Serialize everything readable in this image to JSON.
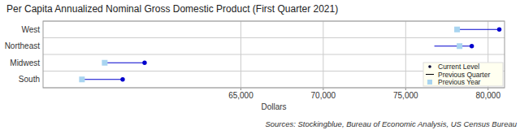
{
  "chart_data": {
    "type": "dot",
    "title": "Per Capita Annualized Nominal Gross Domestic Product (First Quarter 2021)",
    "x_label": "Dollars",
    "source": "Sources: Stockingblue, Bureau of Economic Analysis, US Census Bureau",
    "orientation": "horizontal",
    "categories": [
      "West",
      "Northeast",
      "Midwest",
      "South"
    ],
    "series": [
      {
        "name": "Current Level",
        "color": "#0000cd",
        "marker": "circle",
        "values": [
          80680,
          79010,
          59160,
          57830
        ]
      },
      {
        "name": "Previous Quarter",
        "color": "#0000cd",
        "line_style": "solid",
        "values": [
          78120,
          76740,
          56740,
          55360
        ]
      },
      {
        "name": "Previous Year",
        "color": "#a8d4f0",
        "marker": "square",
        "values": [
          78120,
          78270,
          56740,
          55360
        ]
      }
    ],
    "xlim": [
      53000,
      81000
    ],
    "xticks": [
      {
        "value": 65000,
        "label": "65,000"
      },
      {
        "value": 70000,
        "label": "70,000"
      },
      {
        "value": 75000,
        "label": "75,000"
      },
      {
        "value": 80000,
        "label": "80,000"
      }
    ],
    "grid": true,
    "legend": "lower right"
  }
}
